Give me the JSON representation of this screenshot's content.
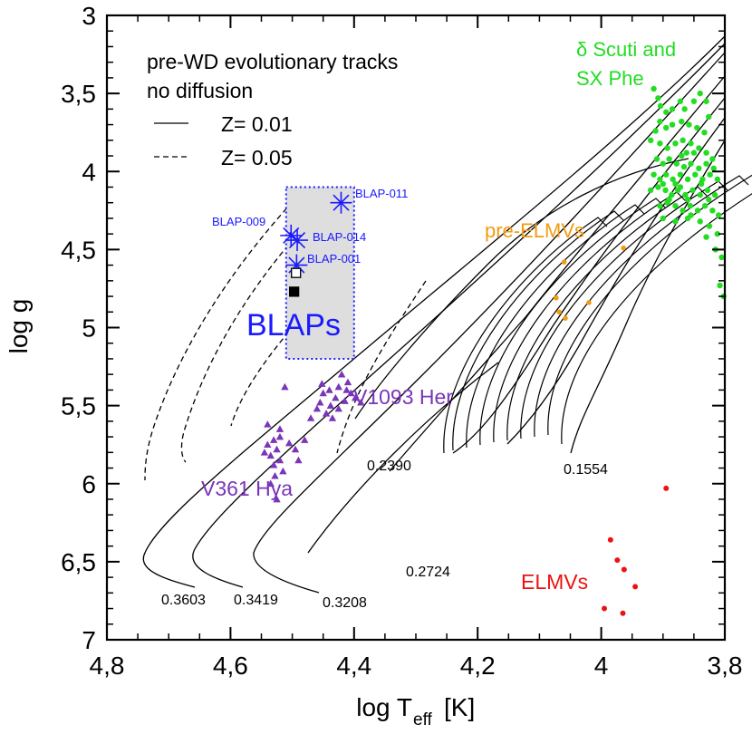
{
  "chart_data": {
    "type": "scatter",
    "title": "",
    "xlabel": "log T",
    "xlabel_sub": "eff",
    "xlabel_unit": "[K]",
    "ylabel": "log g",
    "xlim": [
      4.8,
      3.8
    ],
    "ylim": [
      3,
      7
    ],
    "x_ticks": [
      4.8,
      4.6,
      4.4,
      4.2,
      4.0,
      3.8
    ],
    "x_tick_labels": [
      "4,8",
      "4,6",
      "4,4",
      "4,2",
      "4",
      "3,8"
    ],
    "y_ticks": [
      3,
      3.5,
      4,
      4.5,
      5,
      5.5,
      6,
      6.5,
      7
    ],
    "y_tick_labels": [
      "3",
      "3,5",
      "4",
      "4,5",
      "5",
      "5,5",
      "6",
      "6,5",
      "7"
    ],
    "legend": {
      "title_line1": "pre-WD evolutionary tracks",
      "title_line2": "no diffusion",
      "solid_label": "Z= 0.01",
      "dashed_label": "Z= 0.05",
      "placement": "top-left"
    },
    "blaps_box": {
      "x_range": [
        4.51,
        4.4
      ],
      "y_range": [
        4.1,
        5.2
      ],
      "label": "BLAPs",
      "color": "#1a1aff"
    },
    "blaps": [
      {
        "name": "BLAP-011",
        "x": 4.421,
        "y": 4.2
      },
      {
        "name": "BLAP-009",
        "x": 4.502,
        "y": 4.41
      },
      {
        "name": "BLAP-014",
        "x": 4.492,
        "y": 4.44
      },
      {
        "name": "BLAP-001",
        "x": 4.493,
        "y": 4.6
      }
    ],
    "squares": [
      {
        "kind": "open",
        "x": 4.494,
        "y": 4.65
      },
      {
        "kind": "filled",
        "x": 4.497,
        "y": 4.77
      }
    ],
    "group_labels": [
      {
        "text": "δ Scuti and",
        "color": "#22dd22"
      },
      {
        "text": "SX Phe",
        "color": "#22dd22"
      },
      {
        "text": "pre-ELMVs",
        "color": "#f39c12"
      },
      {
        "text": "V1093 Her",
        "color": "#7a35b8"
      },
      {
        "text": "V361 Hya",
        "color": "#7a35b8"
      },
      {
        "text": "ELMVs",
        "color": "#ee1111"
      }
    ],
    "track_labels": [
      "0.3603",
      "0.3419",
      "0.3208",
      "0.2724",
      "0.2390",
      "0.1554"
    ],
    "colors": {
      "dsct": "#22dd22",
      "preelmv": "#f39c12",
      "sdb": "#7a35b8",
      "elmv": "#ee1111",
      "blap": "#1a1aff"
    },
    "series": [
      {
        "name": "delta Scuti and SX Phe",
        "marker": "circle",
        "points": [
          [
            3.915,
            3.47
          ],
          [
            3.908,
            3.53
          ],
          [
            3.904,
            3.58
          ],
          [
            3.895,
            3.62
          ],
          [
            3.885,
            3.6
          ],
          [
            3.872,
            3.55
          ],
          [
            3.865,
            3.6
          ],
          [
            3.85,
            3.55
          ],
          [
            3.84,
            3.5
          ],
          [
            3.83,
            3.55
          ],
          [
            3.826,
            3.65
          ],
          [
            3.833,
            3.75
          ],
          [
            3.845,
            3.72
          ],
          [
            3.858,
            3.7
          ],
          [
            3.87,
            3.68
          ],
          [
            3.885,
            3.7
          ],
          [
            3.895,
            3.72
          ],
          [
            3.905,
            3.68
          ],
          [
            3.912,
            3.74
          ],
          [
            3.92,
            3.8
          ],
          [
            3.905,
            3.82
          ],
          [
            3.893,
            3.85
          ],
          [
            3.88,
            3.82
          ],
          [
            3.868,
            3.8
          ],
          [
            3.855,
            3.82
          ],
          [
            3.842,
            3.85
          ],
          [
            3.83,
            3.88
          ],
          [
            3.82,
            3.92
          ],
          [
            3.91,
            3.92
          ],
          [
            3.9,
            3.95
          ],
          [
            3.89,
            3.92
          ],
          [
            3.878,
            3.95
          ],
          [
            3.866,
            3.97
          ],
          [
            3.855,
            3.95
          ],
          [
            3.842,
            3.98
          ],
          [
            3.83,
            3.95
          ],
          [
            3.818,
            3.98
          ],
          [
            3.915,
            4.02
          ],
          [
            3.905,
            4.05
          ],
          [
            3.895,
            4.02
          ],
          [
            3.884,
            4.05
          ],
          [
            3.872,
            4.02
          ],
          [
            3.86,
            4.05
          ],
          [
            3.848,
            4.02
          ],
          [
            3.836,
            4.05
          ],
          [
            3.824,
            4.02
          ],
          [
            3.812,
            4.05
          ],
          [
            3.92,
            4.12
          ],
          [
            3.908,
            4.1
          ],
          [
            3.896,
            4.12
          ],
          [
            3.886,
            4.15
          ],
          [
            3.876,
            4.12
          ],
          [
            3.864,
            4.15
          ],
          [
            3.852,
            4.12
          ],
          [
            3.84,
            4.15
          ],
          [
            3.828,
            4.12
          ],
          [
            3.816,
            4.15
          ],
          [
            3.905,
            4.22
          ],
          [
            3.893,
            4.2
          ],
          [
            3.88,
            4.22
          ],
          [
            3.868,
            4.25
          ],
          [
            3.856,
            4.22
          ],
          [
            3.844,
            4.25
          ],
          [
            3.832,
            4.22
          ],
          [
            3.82,
            4.25
          ],
          [
            3.81,
            4.28
          ],
          [
            3.9,
            4.3
          ],
          [
            3.88,
            4.32
          ],
          [
            3.86,
            4.3
          ],
          [
            3.84,
            4.32
          ],
          [
            3.825,
            4.35
          ],
          [
            3.812,
            4.4
          ],
          [
            3.83,
            4.42
          ],
          [
            3.815,
            4.5
          ],
          [
            3.805,
            4.55
          ],
          [
            3.808,
            4.73
          ],
          [
            3.802,
            4.8
          ],
          [
            3.87,
            3.9
          ],
          [
            3.88,
            4.08
          ],
          [
            3.86,
            4.18
          ],
          [
            3.85,
            3.88
          ],
          [
            3.89,
            4.18
          ],
          [
            3.838,
            4.08
          ],
          [
            3.872,
            4.1
          ],
          [
            3.826,
            4.18
          ],
          [
            3.862,
            3.88
          ],
          [
            3.9,
            4.08
          ],
          [
            3.855,
            4.28
          ]
        ]
      },
      {
        "name": "pre-ELMVs",
        "marker": "circle",
        "points": [
          [
            3.964,
            4.49
          ],
          [
            4.06,
            4.58
          ],
          [
            4.073,
            4.81
          ],
          [
            4.02,
            4.84
          ],
          [
            4.068,
            4.9
          ],
          [
            4.058,
            4.94
          ]
        ]
      },
      {
        "name": "V1093 Her and V361 Hya",
        "marker": "triangle",
        "points": [
          [
            4.42,
            5.3
          ],
          [
            4.41,
            5.35
          ],
          [
            4.425,
            5.38
          ],
          [
            4.405,
            5.42
          ],
          [
            4.44,
            5.4
          ],
          [
            4.43,
            5.45
          ],
          [
            4.45,
            5.42
          ],
          [
            4.415,
            5.47
          ],
          [
            4.398,
            5.45
          ],
          [
            4.438,
            5.5
          ],
          [
            4.455,
            5.48
          ],
          [
            4.425,
            5.52
          ],
          [
            4.445,
            5.55
          ],
          [
            4.46,
            5.52
          ],
          [
            4.47,
            5.58
          ],
          [
            4.435,
            5.58
          ],
          [
            4.412,
            5.4
          ],
          [
            4.452,
            5.36
          ],
          [
            4.389,
            5.48
          ],
          [
            4.512,
            5.38
          ],
          [
            4.52,
            5.7
          ],
          [
            4.53,
            5.72
          ],
          [
            4.54,
            5.75
          ],
          [
            4.525,
            5.78
          ],
          [
            4.535,
            5.82
          ],
          [
            4.545,
            5.8
          ],
          [
            4.52,
            5.85
          ],
          [
            4.53,
            5.88
          ],
          [
            4.505,
            5.74
          ],
          [
            4.495,
            5.78
          ],
          [
            4.515,
            5.92
          ],
          [
            4.528,
            5.95
          ],
          [
            4.54,
            5.62
          ],
          [
            4.52,
            5.65
          ],
          [
            4.48,
            5.72
          ],
          [
            4.49,
            5.85
          ],
          [
            4.535,
            6.0
          ],
          [
            4.525,
            6.1
          ]
        ]
      },
      {
        "name": "ELMVs",
        "marker": "circle",
        "points": [
          [
            3.895,
            6.03
          ],
          [
            3.985,
            6.36
          ],
          [
            3.974,
            6.49
          ],
          [
            3.963,
            6.55
          ],
          [
            3.945,
            6.66
          ],
          [
            3.995,
            6.8
          ],
          [
            3.965,
            6.83
          ]
        ]
      }
    ]
  }
}
